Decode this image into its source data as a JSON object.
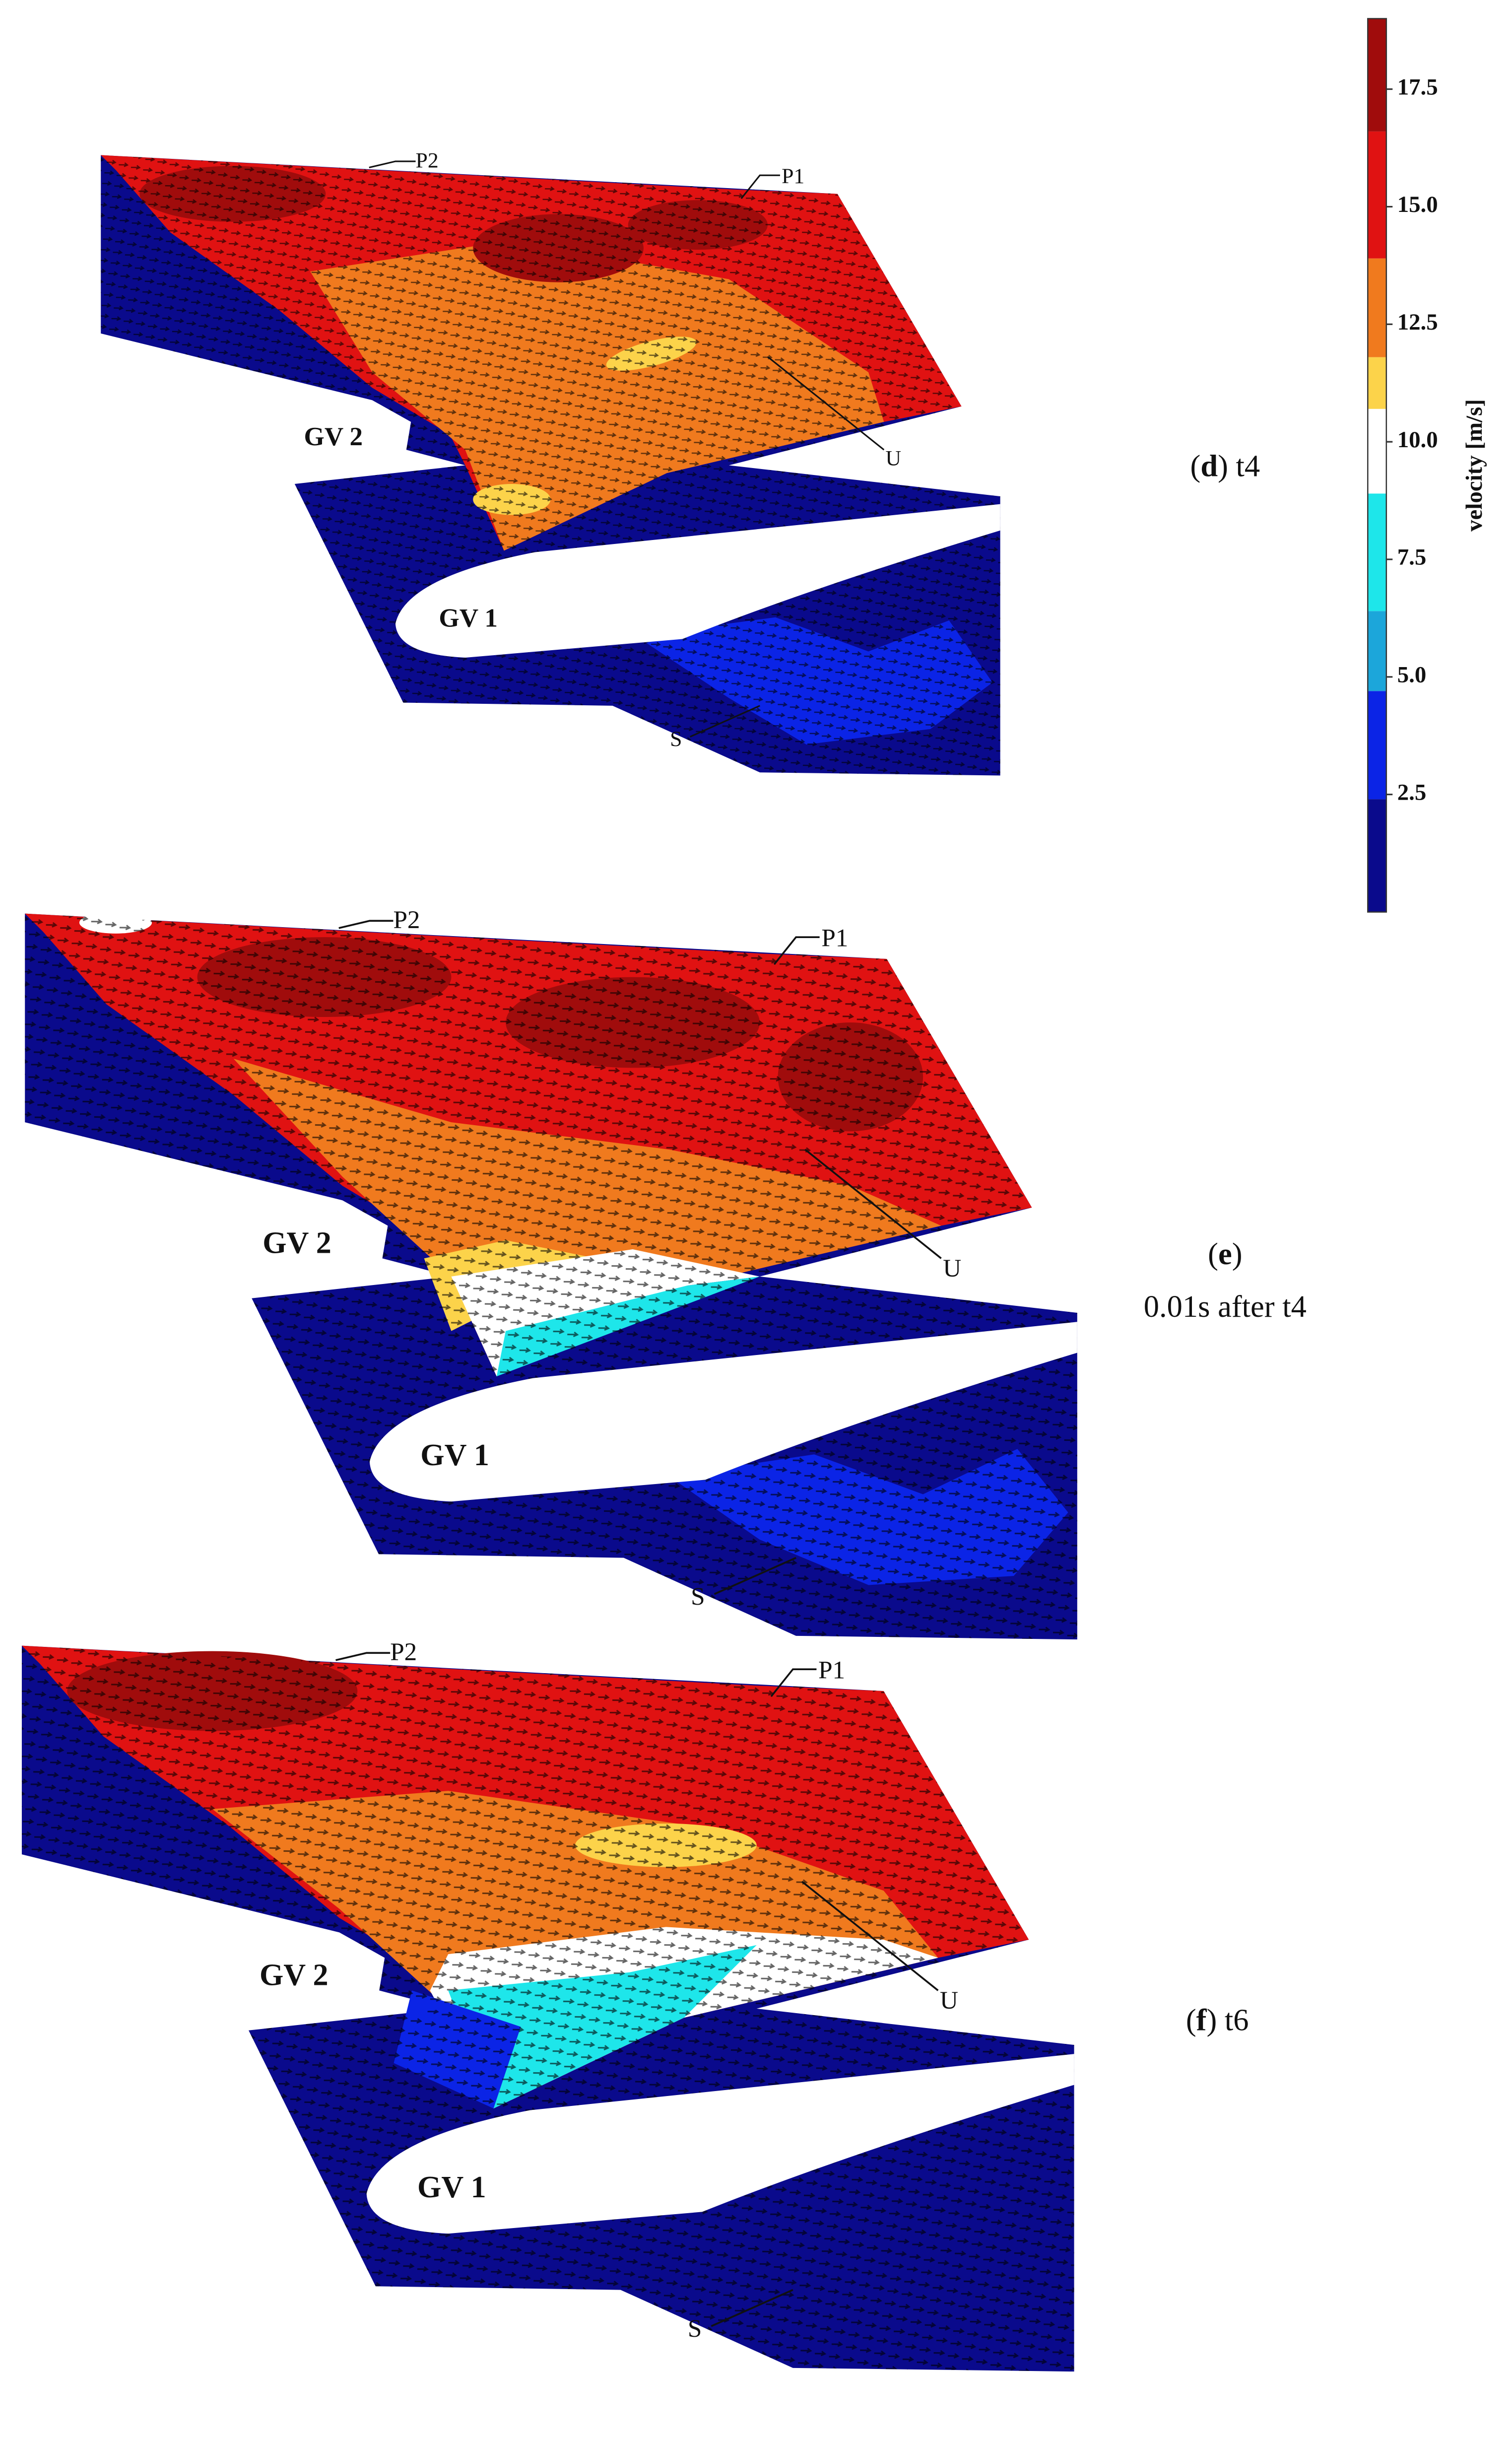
{
  "colorbar": {
    "title": "velocity [m/s]",
    "lim": [
      0,
      19
    ],
    "ticks": [
      2.5,
      {
        "value": 5,
        "label": "5.0"
      },
      7.5,
      {
        "value": 10,
        "label": "10.0"
      },
      12.5,
      {
        "value": 15,
        "label": "15.0"
      },
      17.5
    ],
    "levels": [
      0,
      2.4,
      4.7,
      6.4,
      8.9,
      10.7,
      11.8,
      13.9,
      16.6,
      19
    ],
    "colors": [
      "#0a0a8c",
      "#0b24e6",
      "#1ca6da",
      "#1ee6ea",
      "#ffffff",
      "#fcd34a",
      "#f07a1e",
      "#e01212",
      "#a00c0c"
    ]
  },
  "panels": [
    {
      "caption": [
        "(",
        "d",
        ") t4"
      ],
      "labels": {
        "p2": "P2",
        "p1": "P1",
        "u": "U",
        "gv2": "GV 2",
        "gv1": "GV 1",
        "s": "S"
      }
    },
    {
      "caption": [
        "(",
        "e",
        ")"
      ],
      "subcaption": "0.01s after t4",
      "labels": {
        "p2": "P2",
        "p1": "P1",
        "u": "U",
        "gv2": "GV 2",
        "gv1": "GV 1",
        "s": "S"
      }
    },
    {
      "caption": [
        "(",
        "f",
        ") t6"
      ],
      "labels": {
        "p2": "P2",
        "p1": "P1",
        "u": "U",
        "gv2": "GV 2",
        "gv1": "GV 1",
        "s": "S"
      }
    }
  ]
}
